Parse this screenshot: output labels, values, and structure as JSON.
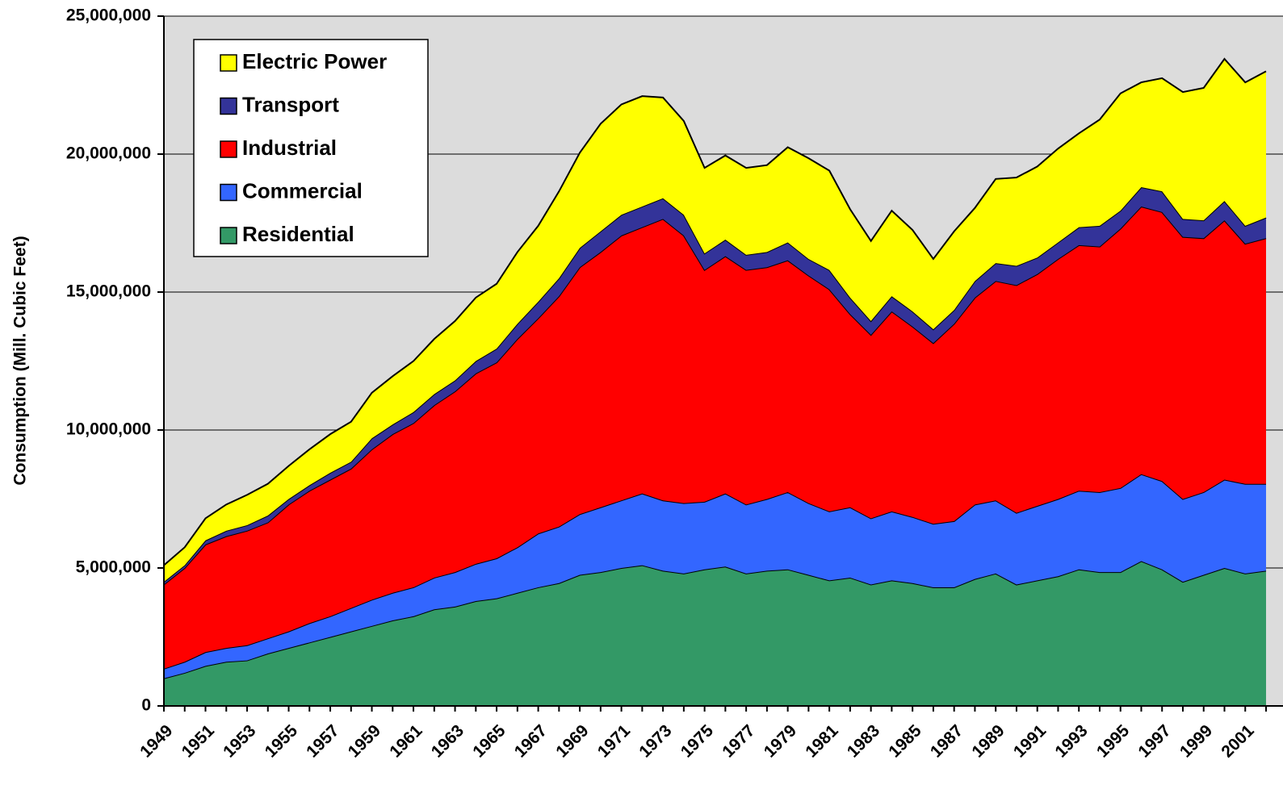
{
  "chart_data": {
    "type": "stacked-area",
    "y_label": "Consumption (Mill. Cubic Feet)",
    "categories": [
      "1949",
      null,
      "1951",
      null,
      "1953",
      null,
      "1955",
      null,
      "1957",
      null,
      "1959",
      null,
      "1961",
      null,
      "1963",
      null,
      "1965",
      null,
      "1967",
      null,
      "1969",
      null,
      "1971",
      null,
      "1973",
      null,
      "1975",
      null,
      "1977",
      null,
      "1979",
      null,
      "1981",
      null,
      "1983",
      null,
      "1985",
      null,
      "1987",
      null,
      "1989",
      null,
      "1991",
      null,
      "1993",
      null,
      "1995",
      null,
      "1997",
      null,
      "1999",
      null,
      "2001",
      null
    ],
    "series": [
      {
        "name": "Residential",
        "color": "#339966",
        "values": [
          1000000,
          1200000,
          1450000,
          1600000,
          1650000,
          1900000,
          2100000,
          2300000,
          2500000,
          2700000,
          2900000,
          3100000,
          3250000,
          3500000,
          3600000,
          3800000,
          3900000,
          4100000,
          4300000,
          4450000,
          4750000,
          4850000,
          5000000,
          5100000,
          4900000,
          4800000,
          4950000,
          5050000,
          4800000,
          4900000,
          4950000,
          4750000,
          4550000,
          4650000,
          4400000,
          4550000,
          4450000,
          4300000,
          4300000,
          4600000,
          4800000,
          4400000,
          4550000,
          4700000,
          4950000,
          4850000,
          4850000,
          5250000,
          4950000,
          4500000,
          4750000,
          5000000,
          4800000,
          4900000
        ]
      },
      {
        "name": "Commercial",
        "color": "#3366ff",
        "values": [
          350000,
          400000,
          500000,
          500000,
          550000,
          550000,
          600000,
          700000,
          750000,
          850000,
          950000,
          1000000,
          1050000,
          1150000,
          1250000,
          1350000,
          1450000,
          1650000,
          1950000,
          2050000,
          2200000,
          2350000,
          2450000,
          2600000,
          2550000,
          2550000,
          2450000,
          2650000,
          2500000,
          2600000,
          2800000,
          2600000,
          2500000,
          2550000,
          2400000,
          2500000,
          2400000,
          2300000,
          2400000,
          2700000,
          2650000,
          2600000,
          2700000,
          2800000,
          2850000,
          2900000,
          3050000,
          3150000,
          3200000,
          3000000,
          3000000,
          3200000,
          3250000,
          3150000
        ]
      },
      {
        "name": "Industrial",
        "color": "#ff0000",
        "values": [
          3050000,
          3400000,
          3900000,
          4050000,
          4150000,
          4200000,
          4600000,
          4800000,
          4950000,
          5050000,
          5450000,
          5750000,
          5950000,
          6250000,
          6550000,
          6900000,
          7100000,
          7550000,
          7800000,
          8350000,
          8950000,
          9250000,
          9600000,
          9650000,
          10200000,
          9700000,
          8400000,
          8600000,
          8500000,
          8400000,
          8400000,
          8250000,
          8050000,
          7000000,
          6650000,
          7250000,
          6900000,
          6550000,
          7150000,
          7500000,
          7950000,
          8250000,
          8400000,
          8700000,
          8900000,
          8900000,
          9400000,
          9700000,
          9750000,
          9500000,
          9200000,
          9400000,
          8700000,
          8900000
        ]
      },
      {
        "name": "Transport",
        "color": "#333399",
        "values": [
          100000,
          100000,
          150000,
          200000,
          200000,
          250000,
          200000,
          200000,
          250000,
          250000,
          400000,
          350000,
          400000,
          400000,
          400000,
          450000,
          500000,
          550000,
          600000,
          650000,
          700000,
          750000,
          750000,
          750000,
          750000,
          750000,
          600000,
          600000,
          550000,
          550000,
          650000,
          600000,
          700000,
          600000,
          500000,
          550000,
          550000,
          500000,
          500000,
          600000,
          650000,
          700000,
          600000,
          600000,
          650000,
          750000,
          650000,
          700000,
          750000,
          650000,
          650000,
          700000,
          650000,
          750000
        ]
      },
      {
        "name": "Electric Power",
        "color": "#ffff00",
        "values": [
          600000,
          650000,
          800000,
          950000,
          1100000,
          1150000,
          1200000,
          1300000,
          1400000,
          1450000,
          1650000,
          1750000,
          1850000,
          2000000,
          2150000,
          2300000,
          2350000,
          2600000,
          2750000,
          3150000,
          3450000,
          3900000,
          4000000,
          4000000,
          3650000,
          3400000,
          3100000,
          3050000,
          3150000,
          3150000,
          3450000,
          3650000,
          3600000,
          3200000,
          2900000,
          3100000,
          2950000,
          2550000,
          2850000,
          2650000,
          3050000,
          3200000,
          3300000,
          3400000,
          3400000,
          3850000,
          4250000,
          3800000,
          4100000,
          4600000,
          4800000,
          5150000,
          5200000,
          5300000
        ]
      }
    ],
    "ylim": [
      0,
      25000000
    ],
    "yticks": [
      0,
      {
        "value": 5000000,
        "label": "5,000,000"
      },
      {
        "value": 10000000,
        "label": "10,000,000"
      },
      {
        "value": 15000000,
        "label": "15,000,000"
      },
      {
        "value": 20000000,
        "label": "20,000,000"
      },
      {
        "value": 25000000,
        "label": "25,000,000"
      }
    ],
    "grid": true,
    "legend": "upper-left",
    "background": "#dcdcdc"
  }
}
